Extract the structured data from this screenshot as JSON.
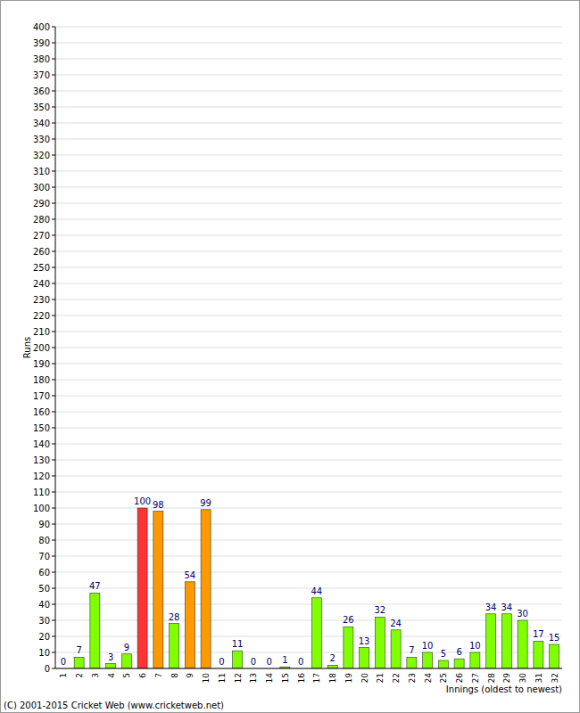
{
  "chart_data": {
    "type": "bar",
    "y_label": "Runs",
    "x_label": "Innings (oldest to newest)",
    "annotations": [
      "(C) 2001-2015 Cricket Web (www.cricketweb.net)"
    ],
    "categories": [
      "1",
      "2",
      "3",
      "4",
      "5",
      "6",
      "7",
      "8",
      "9",
      "10",
      "11",
      "12",
      "13",
      "14",
      "15",
      "16",
      "17",
      "18",
      "19",
      "20",
      "21",
      "22",
      "23",
      "24",
      "25",
      "26",
      "27",
      "28",
      "29",
      "30",
      "31",
      "32"
    ],
    "values": [
      0,
      7,
      47,
      3,
      9,
      100,
      98,
      28,
      54,
      99,
      0,
      11,
      0,
      0,
      1,
      0,
      44,
      2,
      26,
      13,
      32,
      24,
      7,
      10,
      5,
      6,
      10,
      34,
      34,
      30,
      17,
      15
    ],
    "colors": [
      "#80ff00",
      "#80ff00",
      "#80ff00",
      "#80ff00",
      "#80ff00",
      "#ff3333",
      "#ff9900",
      "#80ff00",
      "#ff9900",
      "#ff9900",
      "#80ff00",
      "#80ff00",
      "#80ff00",
      "#80ff00",
      "#80ff00",
      "#80ff00",
      "#80ff00",
      "#80ff00",
      "#80ff00",
      "#80ff00",
      "#80ff00",
      "#80ff00",
      "#80ff00",
      "#80ff00",
      "#80ff00",
      "#80ff00",
      "#80ff00",
      "#80ff00",
      "#80ff00",
      "#80ff00",
      "#80ff00",
      "#80ff00"
    ],
    "ylim": [
      0,
      400
    ],
    "yticks": [
      0,
      10,
      20,
      30,
      40,
      50,
      60,
      70,
      80,
      90,
      100,
      110,
      120,
      130,
      140,
      150,
      160,
      170,
      180,
      190,
      200,
      210,
      220,
      230,
      240,
      250,
      260,
      270,
      280,
      290,
      300,
      310,
      320,
      330,
      340,
      350,
      360,
      370,
      380,
      390,
      400
    ],
    "grid": true,
    "data_labels": true
  }
}
